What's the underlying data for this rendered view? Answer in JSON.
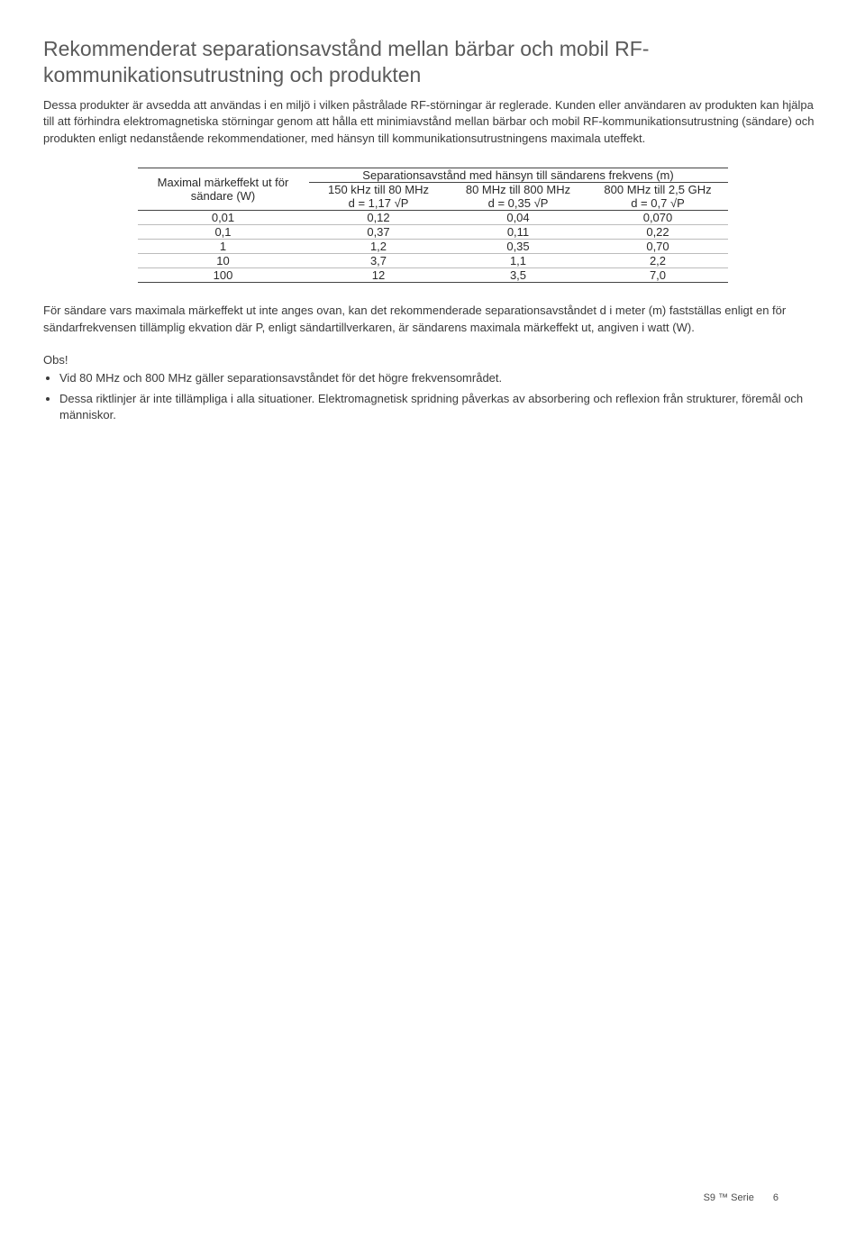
{
  "heading": "Rekommenderat separationsavstånd mellan bärbar och mobil RF-kommunikationsutrustning och produkten",
  "para1": "Dessa produkter är avsedda att användas i en miljö i vilken påstrålade RF-störningar är reglerade. Kunden eller användaren av produkten kan hjälpa till att förhindra elektromagnetiska störningar genom att hålla ett minimiavstånd mellan bärbar och mobil RF-kommunikationsutrustning (sändare) och produkten enligt nedanstående rekommendationer, med hänsyn till kommunikationsutrustningens maximala uteffekt.",
  "table": {
    "rowheader": "Maximal märkeffekt ut för sändare (W)",
    "spanheader": "Separationsavstånd med hänsyn till sändarens frekvens (m)",
    "columns": [
      {
        "range": "150 kHz till 80 MHz",
        "formula": "d = 1,17 √P"
      },
      {
        "range": "80 MHz till 800 MHz",
        "formula": "d = 0,35 √P"
      },
      {
        "range": "800 MHz till 2,5 GHz",
        "formula": "d = 0,7 √P"
      }
    ],
    "rows": [
      {
        "power": "0,01",
        "vals": [
          "0,12",
          "0,04",
          "0,070"
        ]
      },
      {
        "power": "0,1",
        "vals": [
          "0,37",
          "0,11",
          "0,22"
        ]
      },
      {
        "power": "1",
        "vals": [
          "1,2",
          "0,35",
          "0,70"
        ]
      },
      {
        "power": "10",
        "vals": [
          "3,7",
          "1,1",
          "2,2"
        ]
      },
      {
        "power": "100",
        "vals": [
          "12",
          "3,5",
          "7,0"
        ]
      }
    ]
  },
  "para2": "För sändare vars maximala märkeffekt ut inte anges ovan, kan det rekommenderade separationsavståndet d i meter (m) fastställas enligt en för sändarfrekvensen tillämplig ekvation där P, enligt sändartillverkaren, är sändarens maximala märkeffekt ut, angiven i watt (W).",
  "obs_label": "Obs!",
  "notes": [
    "Vid 80 MHz och 800 MHz gäller separationsavståndet för det högre frekvensområdet.",
    "Dessa riktlinjer är inte tillämpliga i alla situationer. Elektromagnetisk spridning påverkas av absorbering och reflexion från strukturer, föremål och människor."
  ],
  "footer_series": "S9 ™ Serie",
  "footer_page": "6"
}
